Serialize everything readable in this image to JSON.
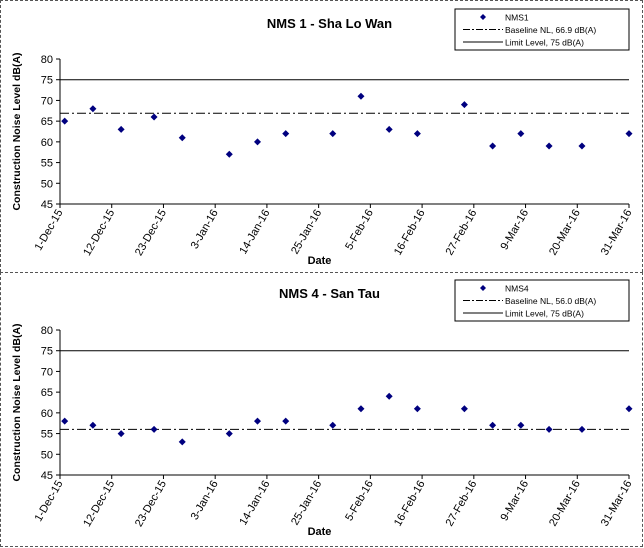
{
  "chart_data": [
    {
      "type": "scatter",
      "title": "NMS 1 - Sha Lo Wan",
      "xlabel": "Date",
      "ylabel": "Construction Noise Level  dB(A)",
      "ylim": [
        45,
        80
      ],
      "yticks": [
        45,
        50,
        55,
        60,
        65,
        70,
        75,
        80
      ],
      "xlim": [
        "2015-12-01",
        "2016-03-31"
      ],
      "xtick_labels": [
        "1-Dec-15",
        "12-Dec-15",
        "23-Dec-15",
        "3-Jan-16",
        "14-Jan-16",
        "25-Jan-16",
        "5-Feb-16",
        "16-Feb-16",
        "27-Feb-16",
        "9-Mar-16",
        "20-Mar-16",
        "31-Mar-16"
      ],
      "xtick_dates": [
        "2015-12-01",
        "2015-12-12",
        "2015-12-23",
        "2016-01-03",
        "2016-01-14",
        "2016-01-25",
        "2016-02-05",
        "2016-02-16",
        "2016-02-27",
        "2016-03-09",
        "2016-03-20",
        "2016-03-31"
      ],
      "grid": false,
      "legend_position": "top-right",
      "series": [
        {
          "name": "NMS1",
          "marker": "diamond",
          "color": "#00007f",
          "points": [
            {
              "x": "2015-12-02",
              "y": 65
            },
            {
              "x": "2015-12-08",
              "y": 68
            },
            {
              "x": "2015-12-14",
              "y": 63
            },
            {
              "x": "2015-12-21",
              "y": 66
            },
            {
              "x": "2015-12-27",
              "y": 61
            },
            {
              "x": "2016-01-06",
              "y": 57
            },
            {
              "x": "2016-01-12",
              "y": 60
            },
            {
              "x": "2016-01-18",
              "y": 62
            },
            {
              "x": "2016-01-28",
              "y": 62
            },
            {
              "x": "2016-02-03",
              "y": 71
            },
            {
              "x": "2016-02-09",
              "y": 63
            },
            {
              "x": "2016-02-15",
              "y": 62
            },
            {
              "x": "2016-02-25",
              "y": 69
            },
            {
              "x": "2016-03-02",
              "y": 59
            },
            {
              "x": "2016-03-08",
              "y": 62
            },
            {
              "x": "2016-03-14",
              "y": 59
            },
            {
              "x": "2016-03-21",
              "y": 59
            },
            {
              "x": "2016-03-31",
              "y": 62
            }
          ]
        }
      ],
      "reference_lines": [
        {
          "name": "Baseline NL, 66.9 dB(A)",
          "y": 66.9,
          "style": "dash-dot",
          "color": "#000000"
        },
        {
          "name": "Limit Level, 75 dB(A)",
          "y": 75,
          "style": "solid",
          "color": "#000000"
        }
      ]
    },
    {
      "type": "scatter",
      "title": "NMS 4 - San Tau",
      "xlabel": "Date",
      "ylabel": "Construction Noise Level  dB(A)",
      "ylim": [
        45,
        80
      ],
      "yticks": [
        45,
        50,
        55,
        60,
        65,
        70,
        75,
        80
      ],
      "xlim": [
        "2015-12-01",
        "2016-03-31"
      ],
      "xtick_labels": [
        "1-Dec-15",
        "12-Dec-15",
        "23-Dec-15",
        "3-Jan-16",
        "14-Jan-16",
        "25-Jan-16",
        "5-Feb-16",
        "16-Feb-16",
        "27-Feb-16",
        "9-Mar-16",
        "20-Mar-16",
        "31-Mar-16"
      ],
      "xtick_dates": [
        "2015-12-01",
        "2015-12-12",
        "2015-12-23",
        "2016-01-03",
        "2016-01-14",
        "2016-01-25",
        "2016-02-05",
        "2016-02-16",
        "2016-02-27",
        "2016-03-09",
        "2016-03-20",
        "2016-03-31"
      ],
      "grid": false,
      "legend_position": "top-right",
      "series": [
        {
          "name": "NMS4",
          "marker": "diamond",
          "color": "#00007f",
          "points": [
            {
              "x": "2015-12-02",
              "y": 58
            },
            {
              "x": "2015-12-08",
              "y": 57
            },
            {
              "x": "2015-12-14",
              "y": 55
            },
            {
              "x": "2015-12-21",
              "y": 56
            },
            {
              "x": "2015-12-27",
              "y": 53
            },
            {
              "x": "2016-01-06",
              "y": 55
            },
            {
              "x": "2016-01-12",
              "y": 58
            },
            {
              "x": "2016-01-18",
              "y": 58
            },
            {
              "x": "2016-01-28",
              "y": 57
            },
            {
              "x": "2016-02-03",
              "y": 61
            },
            {
              "x": "2016-02-09",
              "y": 64
            },
            {
              "x": "2016-02-15",
              "y": 61
            },
            {
              "x": "2016-02-25",
              "y": 61
            },
            {
              "x": "2016-03-02",
              "y": 57
            },
            {
              "x": "2016-03-08",
              "y": 57
            },
            {
              "x": "2016-03-14",
              "y": 56
            },
            {
              "x": "2016-03-21",
              "y": 56
            },
            {
              "x": "2016-03-31",
              "y": 61
            }
          ]
        }
      ],
      "reference_lines": [
        {
          "name": "Baseline NL, 56.0 dB(A)",
          "y": 56.0,
          "style": "dash-dot",
          "color": "#000000"
        },
        {
          "name": "Limit Level, 75 dB(A)",
          "y": 75,
          "style": "solid",
          "color": "#000000"
        }
      ]
    }
  ]
}
